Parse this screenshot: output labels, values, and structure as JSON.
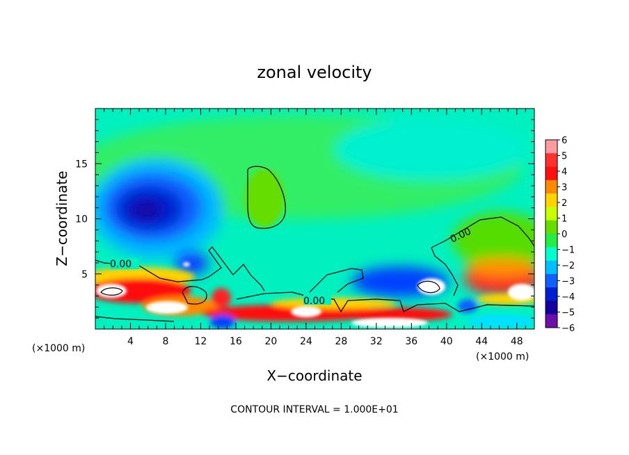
{
  "chart_data": {
    "type": "heatmap",
    "title": "zonal velocity",
    "xlabel": "X−coordinate",
    "ylabel": "Z−coordinate",
    "x_unit_left": "(×1000 m)",
    "x_unit_right": "(×1000 m)",
    "xlim": [
      0,
      50
    ],
    "ylim": [
      0,
      20
    ],
    "x_ticks": [
      4,
      8,
      12,
      16,
      20,
      24,
      28,
      32,
      36,
      40,
      44,
      48
    ],
    "y_ticks": [
      5,
      10,
      15
    ],
    "colorbar": {
      "levels": [
        6,
        5,
        4,
        3,
        2,
        1,
        0,
        -1,
        -2,
        -3,
        -4,
        -5,
        -6
      ],
      "labels": [
        "6",
        "5",
        "4",
        "3",
        "2",
        "1",
        "0",
        "−1",
        "−2",
        "−3",
        "−4",
        "−5",
        "−6"
      ],
      "colors": [
        "#ff9aa0",
        "#ff3030",
        "#ff1010",
        "#ff8a00",
        "#ffd200",
        "#c8ff00",
        "#66dd00",
        "#22ee44",
        "#00ffcc",
        "#00bfff",
        "#1060ff",
        "#0020d0",
        "#1400a0",
        "#6a10a8"
      ]
    },
    "contour_labels": [
      "0.00",
      "0.00",
      "0.00"
    ],
    "footer": "CONTOUR INTERVAL = 1.000E+01"
  }
}
